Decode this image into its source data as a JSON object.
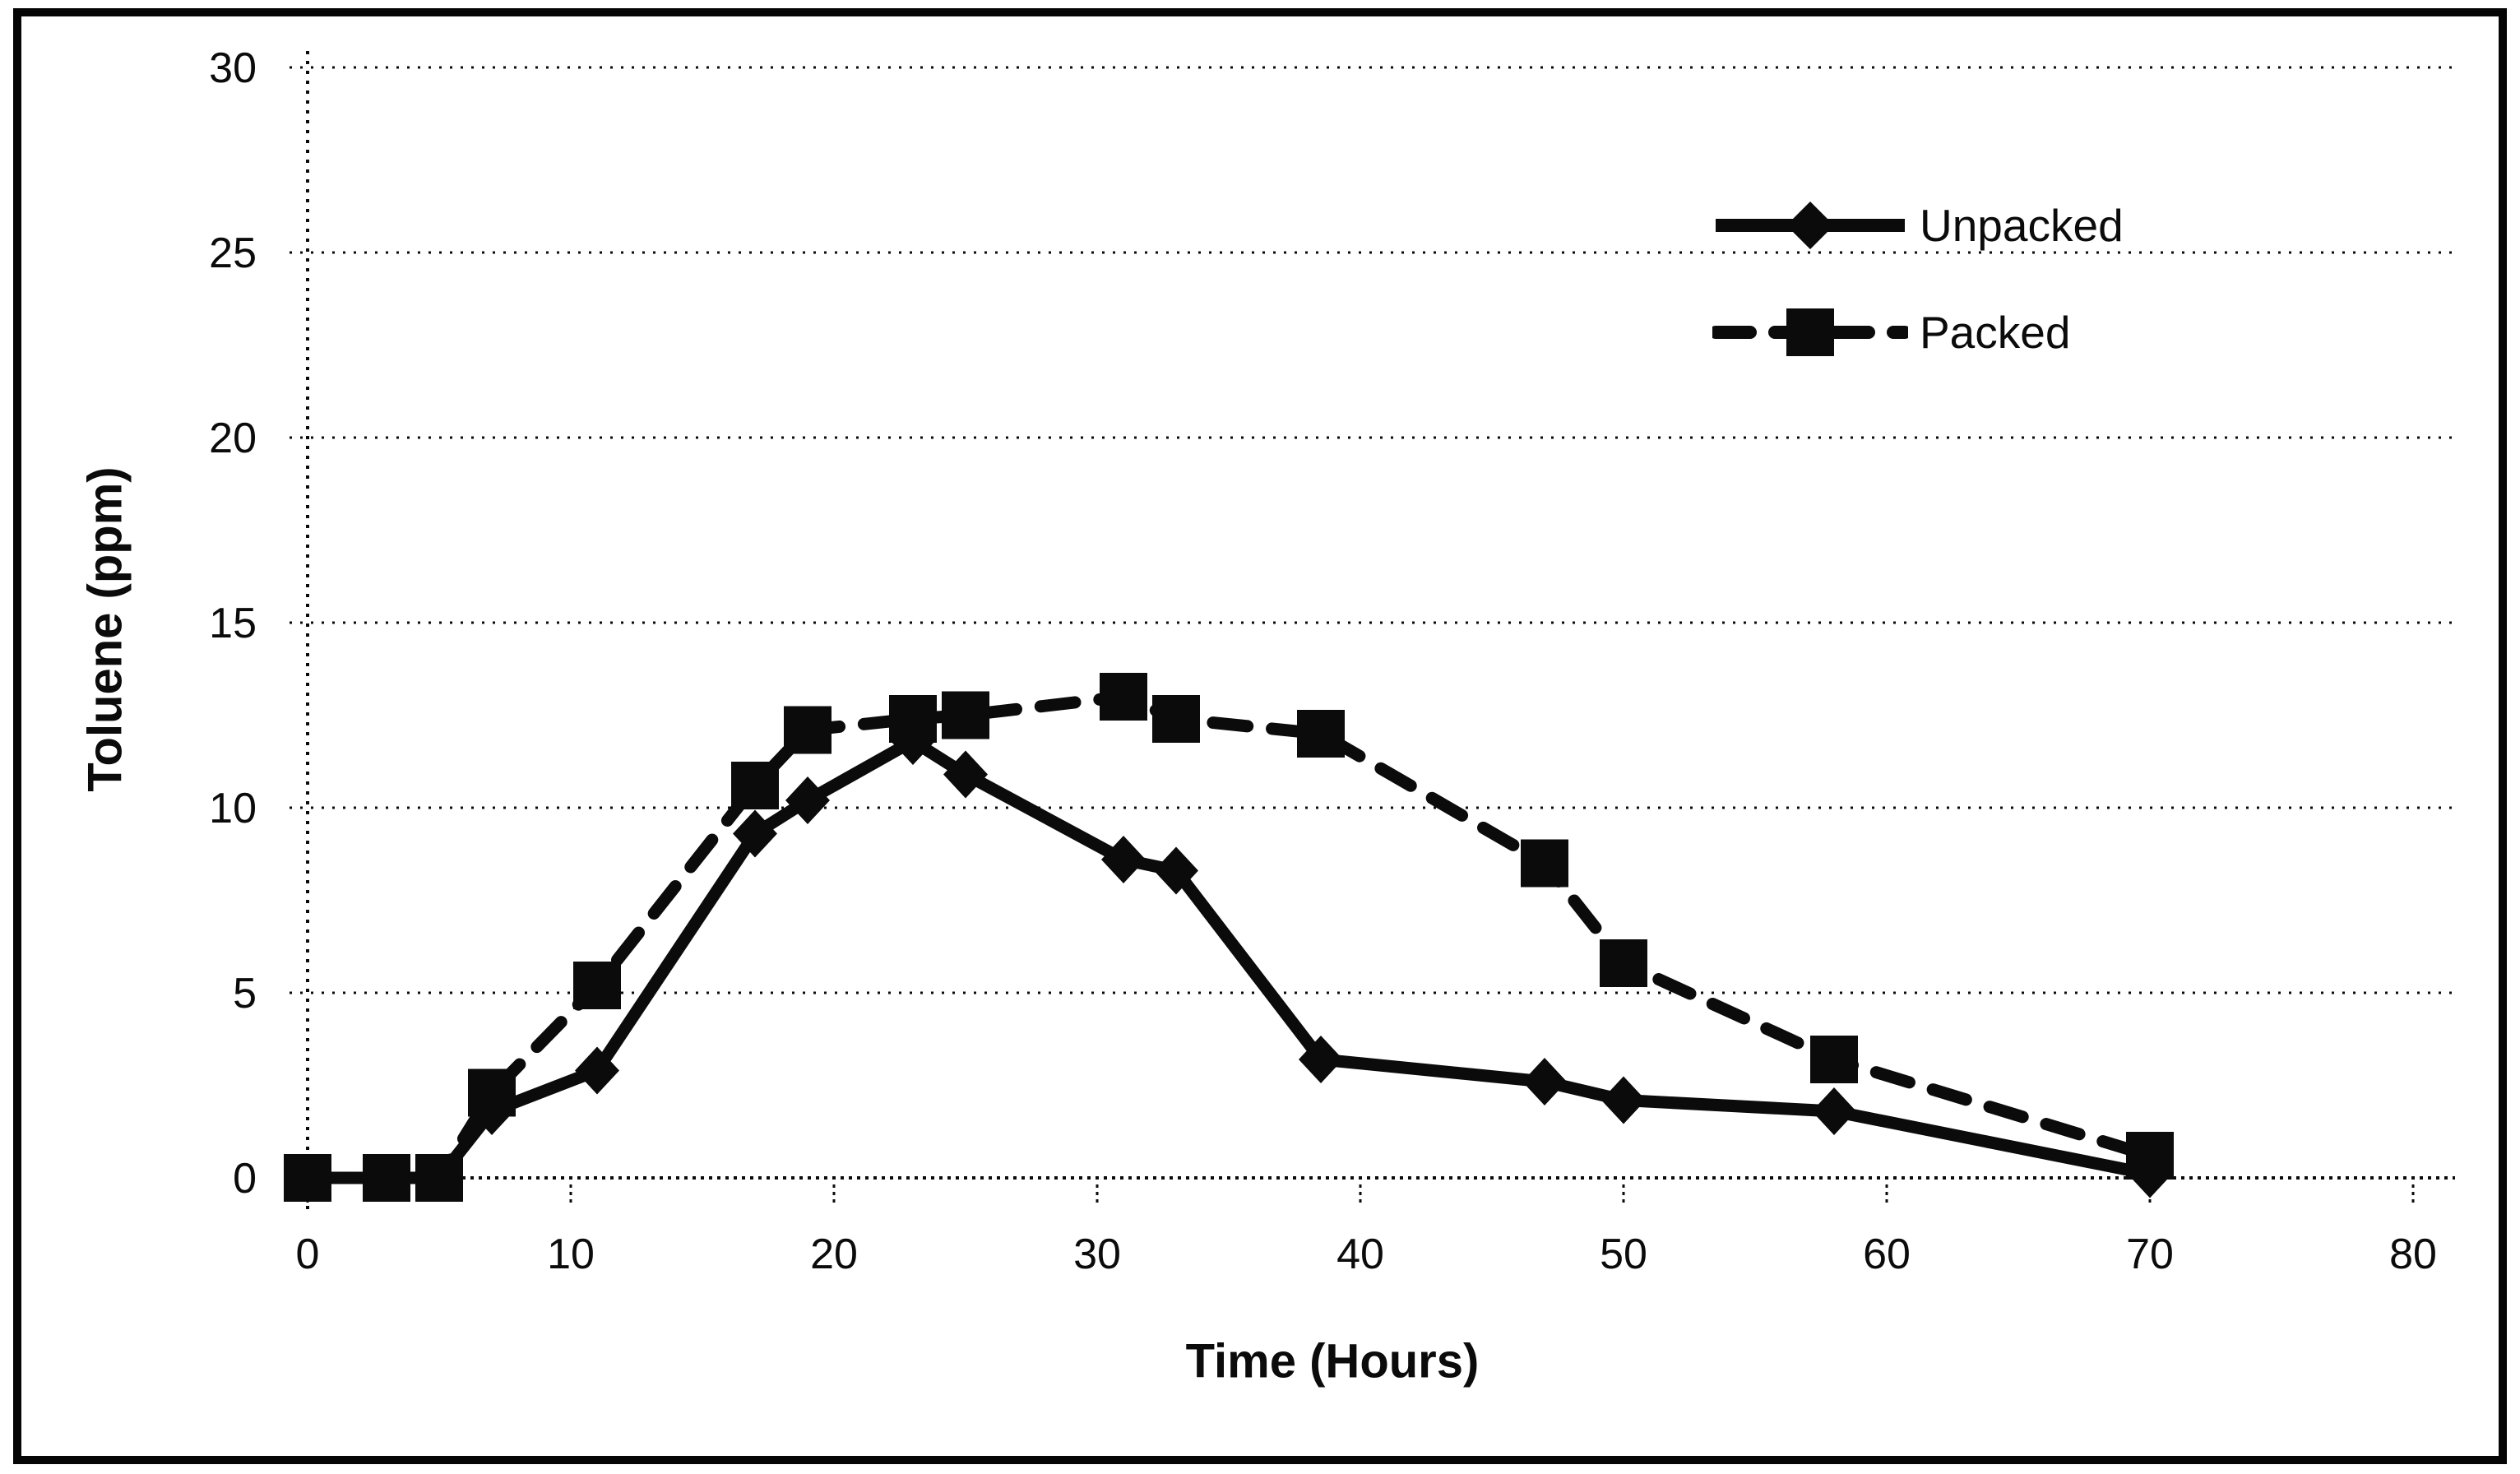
{
  "figure": {
    "background_color": "#ffffff",
    "frame_color": "#050505",
    "ink_color": "#0b0b0b"
  },
  "chart_data": {
    "type": "line",
    "title": "",
    "xlabel": "Time (Hours)",
    "ylabel": "Toluene (ppm)",
    "xlim": [
      0,
      80
    ],
    "ylim": [
      0,
      30
    ],
    "x_ticks": [
      0,
      10,
      20,
      30,
      40,
      50,
      60,
      70,
      80
    ],
    "y_ticks": [
      0,
      5,
      10,
      15,
      20,
      25,
      30
    ],
    "grid": "horizontal dotted gridlines at every y tick",
    "axis_style": "dotted black axes, scanned monochrome look",
    "legend_position": "top-right inside plot, no border",
    "x": [
      0,
      3,
      5,
      7,
      11,
      17,
      19,
      23,
      25,
      31,
      33,
      38.5,
      47,
      50,
      58,
      70
    ],
    "series": [
      {
        "name": "Unpacked",
        "marker": "diamond",
        "line_style": "solid",
        "color": "#0b0b0b",
        "values": [
          0,
          0,
          0,
          1.8,
          2.9,
          9.3,
          10.2,
          11.8,
          10.9,
          8.6,
          8.3,
          3.2,
          2.6,
          2.1,
          1.8,
          0.1
        ]
      },
      {
        "name": "Packed",
        "marker": "square",
        "line_style": "dashed",
        "color": "#0b0b0b",
        "values": [
          0,
          0,
          0,
          2.3,
          5.2,
          10.6,
          12.1,
          12.4,
          12.5,
          13.0,
          12.4,
          12.0,
          8.5,
          5.8,
          3.2,
          0.6
        ]
      }
    ]
  }
}
